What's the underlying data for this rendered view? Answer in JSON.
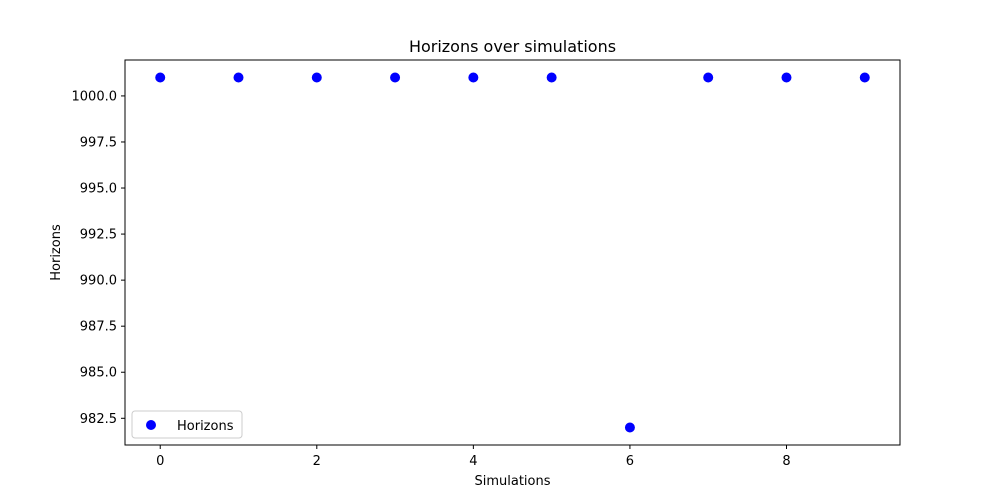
{
  "chart_data": {
    "type": "scatter",
    "title": "Horizons over simulations",
    "xlabel": "Simulations",
    "ylabel": "Horizons",
    "xlim": [
      -0.45,
      9.45
    ],
    "ylim": [
      981.05,
      1001.95
    ],
    "x_ticks": [
      0,
      2,
      4,
      6,
      8
    ],
    "x_tick_labels": [
      "0",
      "2",
      "4",
      "6",
      "8"
    ],
    "y_ticks": [
      982.5,
      985.0,
      987.5,
      990.0,
      992.5,
      995.0,
      997.5,
      1000.0
    ],
    "y_tick_labels": [
      "982.5",
      "985.0",
      "987.5",
      "990.0",
      "992.5",
      "995.0",
      "997.5",
      "1000.0"
    ],
    "grid": false,
    "legend_position": "lower-left",
    "series": [
      {
        "name": "Horizons",
        "color": "#0000ff",
        "x": [
          0,
          1,
          2,
          3,
          4,
          5,
          6,
          7,
          8,
          9
        ],
        "y": [
          1001,
          1001,
          1001,
          1001,
          1001,
          1001,
          982,
          1001,
          1001,
          1001
        ]
      }
    ]
  }
}
